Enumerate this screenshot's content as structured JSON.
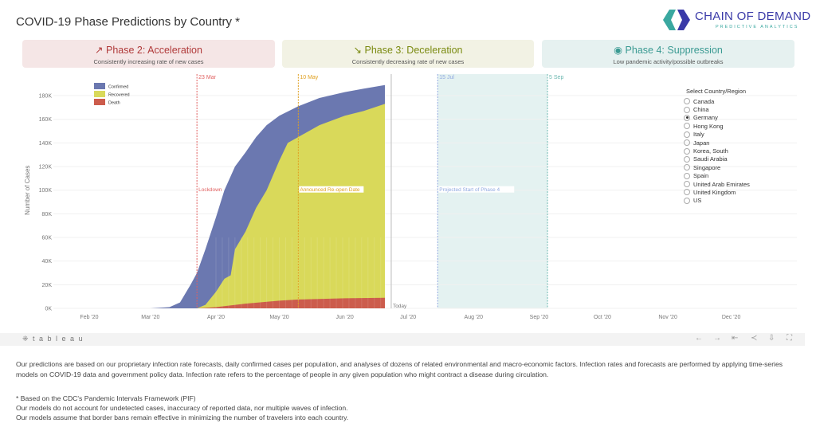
{
  "header": {
    "title": "COVID-19 Phase Predictions by Country *",
    "logo_name": "CHAIN OF DEMAND",
    "logo_tagline": "PREDICTIVE ANALYTICS"
  },
  "phases": [
    {
      "icon": "↗",
      "title": "Phase 2: Acceleration",
      "subtitle": "Consistently increasing rate of new cases",
      "color": "#b03a3a",
      "bg": "#f5e6e6"
    },
    {
      "icon": "↘",
      "title": "Phase 3: Deceleration",
      "subtitle": "Consistently decreasing rate of new cases",
      "color": "#7a8a10",
      "bg": "#f2f2e4"
    },
    {
      "icon": "◉",
      "title": "Phase 4: Suppression",
      "subtitle": "Low pandemic activity/possible outbreaks",
      "color": "#3a9a92",
      "bg": "#e6f1f0"
    }
  ],
  "chart_data": {
    "type": "area",
    "ylabel": "Number of Cases",
    "yticks": [
      "0K",
      "20K",
      "40K",
      "60K",
      "80K",
      "100K",
      "120K",
      "140K",
      "160K",
      "180K"
    ],
    "xticks": [
      "Feb '20",
      "Mar '20",
      "Apr '20",
      "May '20",
      "Jun '20",
      "Jul '20",
      "Aug '20",
      "Sep '20",
      "Oct '20",
      "Nov '20",
      "Dec '20"
    ],
    "legend": [
      {
        "name": "Confirmed",
        "color": "#6b78b0"
      },
      {
        "name": "Recovered",
        "color": "#d9d95a"
      },
      {
        "name": "Death",
        "color": "#cc5c4c"
      }
    ],
    "series": {
      "Confirmed": [
        [
          "2020-03-01",
          0
        ],
        [
          "2020-03-10",
          1
        ],
        [
          "2020-03-15",
          5
        ],
        [
          "2020-03-20",
          20
        ],
        [
          "2020-03-23",
          30
        ],
        [
          "2020-03-27",
          50
        ],
        [
          "2020-04-01",
          77
        ],
        [
          "2020-04-05",
          100
        ],
        [
          "2020-04-10",
          120
        ],
        [
          "2020-04-15",
          132
        ],
        [
          "2020-04-20",
          145
        ],
        [
          "2020-04-25",
          155
        ],
        [
          "2020-05-01",
          163
        ],
        [
          "2020-05-10",
          171
        ],
        [
          "2020-05-20",
          178
        ],
        [
          "2020-06-01",
          183
        ],
        [
          "2020-06-10",
          186
        ],
        [
          "2020-06-20",
          189
        ]
      ],
      "Recovered": [
        [
          "2020-03-23",
          0
        ],
        [
          "2020-03-27",
          3
        ],
        [
          "2020-04-01",
          14
        ],
        [
          "2020-04-05",
          25
        ],
        [
          "2020-04-08",
          28
        ],
        [
          "2020-04-10",
          50
        ],
        [
          "2020-04-15",
          65
        ],
        [
          "2020-04-20",
          85
        ],
        [
          "2020-04-25",
          100
        ],
        [
          "2020-05-01",
          125
        ],
        [
          "2020-05-05",
          140
        ],
        [
          "2020-05-10",
          145
        ],
        [
          "2020-05-20",
          155
        ],
        [
          "2020-06-01",
          163
        ],
        [
          "2020-06-10",
          167
        ],
        [
          "2020-06-20",
          173
        ]
      ],
      "Death": [
        [
          "2020-03-23",
          0
        ],
        [
          "2020-04-01",
          1
        ],
        [
          "2020-04-15",
          4
        ],
        [
          "2020-05-01",
          6.5
        ],
        [
          "2020-05-10",
          7.5
        ],
        [
          "2020-06-01",
          8.5
        ],
        [
          "2020-06-20",
          9
        ]
      ]
    },
    "yunit": "thousands",
    "ylim": [
      0,
      200
    ],
    "xlim": [
      "2020-01-11",
      "2020-12-31"
    ],
    "annotations": [
      {
        "date": "2020-03-23",
        "top": "23 Mar",
        "mid": "Lockdown",
        "color": "#e06060"
      },
      {
        "date": "2020-05-10",
        "top": "10 May",
        "mid": "Announced Re-open Date",
        "color": "#e0a020"
      },
      {
        "date": "2020-07-15",
        "top": "15 Jul",
        "mid": "Projected Start of Phase 4",
        "color": "#90a8e0"
      },
      {
        "date": "2020-09-05",
        "top": "5 Sep",
        "mid": "",
        "color": "#6cb8b0"
      }
    ],
    "today": {
      "date": "2020-06-23",
      "label": "Today"
    },
    "band": [
      "2020-07-15",
      "2020-09-05"
    ]
  },
  "selector": {
    "heading": "Select Country/Region",
    "options": [
      "Canada",
      "China",
      "Germany",
      "Hong Kong",
      "Italy",
      "Japan",
      "Korea, South",
      "Saudi Arabia",
      "Singapore",
      "Spain",
      "United Arab Emirates",
      "United Kingdom",
      "US"
    ],
    "selected": "Germany"
  },
  "toolbar": {
    "brand": "⁜ t a b l e a u"
  },
  "footer": {
    "p1": "Our predictions are based on our proprietary infection rate forecasts, daily confirmed cases per population, and analyses of dozens of related environmental and macro-economic factors. Infection rates and forecasts are performed by applying time-series models on COVID-19 data and government policy data. Infection rate refers to the percentage of people in any given population who might contract a disease during circulation.",
    "n1": "* Based on the CDC's Pandemic Intervals Framework (PIF)",
    "n2": "Our models do not account for undetected cases, inaccuracy of reported data, nor multiple waves of infection.",
    "n3": "Our models assume that border bans remain effective in minimizing the number of travelers into each country."
  }
}
